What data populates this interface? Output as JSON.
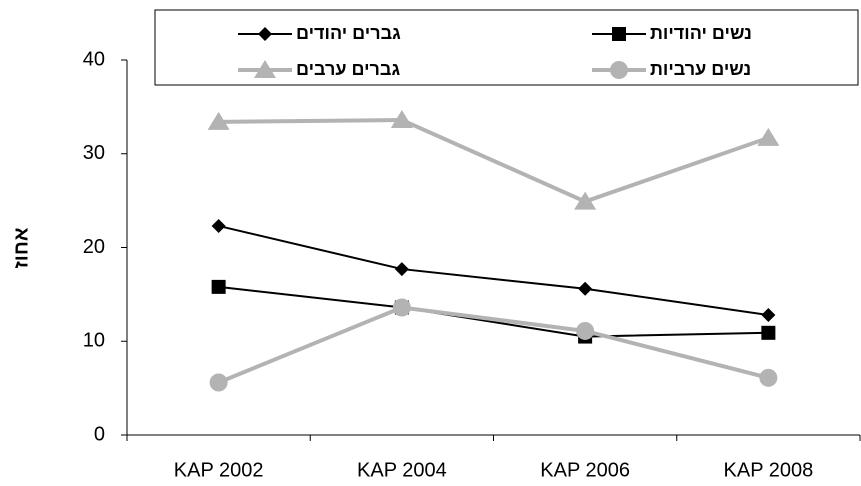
{
  "chart_data": {
    "type": "line",
    "y_label": "אחוז",
    "categories": [
      "KAP 2002",
      "KAP 2004",
      "KAP 2006",
      "KAP 2008"
    ],
    "series": [
      {
        "name": "גברים יהודים",
        "color": "#000000",
        "marker": "diamond",
        "values": [
          22.3,
          17.7,
          15.6,
          12.8
        ]
      },
      {
        "name": "נשים יהודיות",
        "color": "#000000",
        "marker": "square",
        "values": [
          15.8,
          13.6,
          10.5,
          10.9
        ]
      },
      {
        "name": "גברים ערבים",
        "color": "#b3b3b3",
        "marker": "triangle",
        "values": [
          33.4,
          33.6,
          24.9,
          31.7
        ]
      },
      {
        "name": "נשים ערביות",
        "color": "#b3b3b3",
        "marker": "circle",
        "values": [
          5.6,
          13.6,
          11.1,
          6.1
        ]
      }
    ],
    "ylim": [
      0,
      40
    ],
    "yticks": [
      0,
      10,
      20,
      30,
      40
    ],
    "grid": false,
    "legend": "top"
  }
}
